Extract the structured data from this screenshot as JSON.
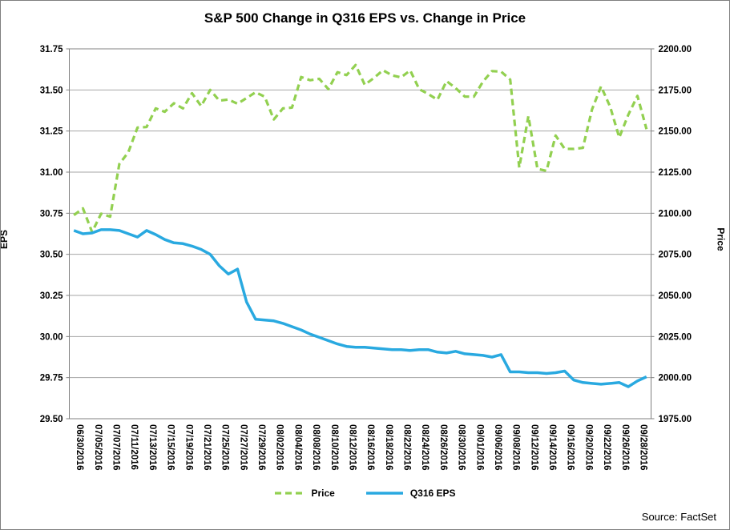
{
  "page": {
    "background": "#ffffff",
    "border_color": "#7f7f7f"
  },
  "chart": {
    "title": "S&P 500 Change in Q316 EPS vs. Change in Price",
    "source": "Source: FactSet",
    "left_axis_title": "EPS",
    "right_axis_title": "Price",
    "legend": [
      {
        "label": "Price",
        "color": "#92d050",
        "dashed": true
      },
      {
        "label": "Q316 EPS",
        "color": "#29a9e0",
        "dashed": false
      }
    ]
  },
  "chart_data": {
    "type": "line",
    "title": "S&P 500 Change in Q316 EPS vs. Change in Price",
    "xlabel": "",
    "left_ylabel": "EPS",
    "right_ylabel": "Price",
    "left_ylim": [
      29.5,
      31.75
    ],
    "left_step": 0.25,
    "right_ylim": [
      1975.0,
      2200.0
    ],
    "right_step": 25,
    "grid": true,
    "legend_position": "bottom",
    "label_every": 2,
    "x": [
      "06/30/2016",
      "07/01/2016",
      "07/05/2016",
      "07/06/2016",
      "07/07/2016",
      "07/08/2016",
      "07/11/2016",
      "07/12/2016",
      "07/13/2016",
      "07/14/2016",
      "07/15/2016",
      "07/18/2016",
      "07/19/2016",
      "07/20/2016",
      "07/21/2016",
      "07/22/2016",
      "07/25/2016",
      "07/26/2016",
      "07/27/2016",
      "07/28/2016",
      "07/29/2016",
      "08/01/2016",
      "08/02/2016",
      "08/03/2016",
      "08/04/2016",
      "08/05/2016",
      "08/08/2016",
      "08/09/2016",
      "08/10/2016",
      "08/11/2016",
      "08/12/2016",
      "08/15/2016",
      "08/16/2016",
      "08/17/2016",
      "08/18/2016",
      "08/19/2016",
      "08/22/2016",
      "08/23/2016",
      "08/24/2016",
      "08/25/2016",
      "08/26/2016",
      "08/29/2016",
      "08/30/2016",
      "08/31/2016",
      "09/01/2016",
      "09/02/2016",
      "09/06/2016",
      "09/07/2016",
      "09/08/2016",
      "09/09/2016",
      "09/12/2016",
      "09/13/2016",
      "09/14/2016",
      "09/15/2016",
      "09/16/2016",
      "09/19/2016",
      "09/20/2016",
      "09/21/2016",
      "09/22/2016",
      "09/23/2016",
      "09/26/2016",
      "09/27/2016",
      "09/28/2016",
      "09/29/2016"
    ],
    "x_tick_labels": [
      "06/30/2016",
      "07/05/2016",
      "07/07/2016",
      "07/11/2016",
      "07/13/2016",
      "07/15/2016",
      "07/19/2016",
      "07/21/2016",
      "07/25/2016",
      "07/27/2016",
      "07/29/2016",
      "08/02/2016",
      "08/04/2016",
      "08/08/2016",
      "08/10/2016",
      "08/12/2016",
      "08/16/2016",
      "08/18/2016",
      "08/22/2016",
      "08/24/2016",
      "08/26/2016",
      "08/30/2016",
      "09/01/2016",
      "09/06/2016",
      "09/08/2016",
      "09/12/2016",
      "09/14/2016",
      "09/16/2016",
      "09/20/2016",
      "09/22/2016",
      "09/26/2016",
      "09/28/2016"
    ],
    "series": [
      {
        "name": "Price",
        "axis": "right",
        "color": "#92d050",
        "style": "dashed",
        "values": [
          2098.86,
          2102.95,
          2088.55,
          2099.73,
          2097.9,
          2129.9,
          2137.16,
          2152.14,
          2152.43,
          2163.75,
          2161.74,
          2166.89,
          2163.78,
          2173.02,
          2165.17,
          2175.03,
          2168.48,
          2169.18,
          2166.58,
          2170.06,
          2173.6,
          2170.84,
          2157.03,
          2163.79,
          2164.25,
          2182.87,
          2180.89,
          2181.74,
          2175.49,
          2185.79,
          2184.05,
          2190.15,
          2178.15,
          2182.22,
          2187.02,
          2183.87,
          2182.64,
          2186.9,
          2175.44,
          2172.47,
          2169.04,
          2180.38,
          2176.12,
          2170.95,
          2170.86,
          2179.98,
          2186.48,
          2186.16,
          2181.3,
          2127.81,
          2159.04,
          2127.02,
          2125.77,
          2147.26,
          2139.16,
          2139.12,
          2139.76,
          2163.12,
          2177.18,
          2164.69,
          2146.1,
          2159.93,
          2171.37,
          2151.13
        ]
      },
      {
        "name": "Q316 EPS",
        "axis": "left",
        "color": "#29a9e0",
        "style": "solid",
        "values": [
          30.645,
          30.625,
          30.63,
          30.65,
          30.65,
          30.645,
          30.625,
          30.605,
          30.645,
          30.62,
          30.59,
          30.57,
          30.565,
          30.55,
          30.53,
          30.5,
          30.43,
          30.38,
          30.41,
          30.21,
          30.105,
          30.1,
          30.095,
          30.08,
          30.06,
          30.04,
          30.015,
          29.995,
          29.975,
          29.955,
          29.94,
          29.935,
          29.935,
          29.93,
          29.925,
          29.92,
          29.92,
          29.915,
          29.92,
          29.92,
          29.905,
          29.9,
          29.91,
          29.895,
          29.89,
          29.885,
          29.875,
          29.89,
          29.785,
          29.785,
          29.78,
          29.78,
          29.775,
          29.78,
          29.79,
          29.735,
          29.72,
          29.715,
          29.71,
          29.715,
          29.72,
          29.695,
          29.73,
          29.755
        ]
      }
    ]
  },
  "style": {
    "gridline_color": "#a6a6a6",
    "axis_line_color": "#808080",
    "tick_label_color": "#000000"
  }
}
